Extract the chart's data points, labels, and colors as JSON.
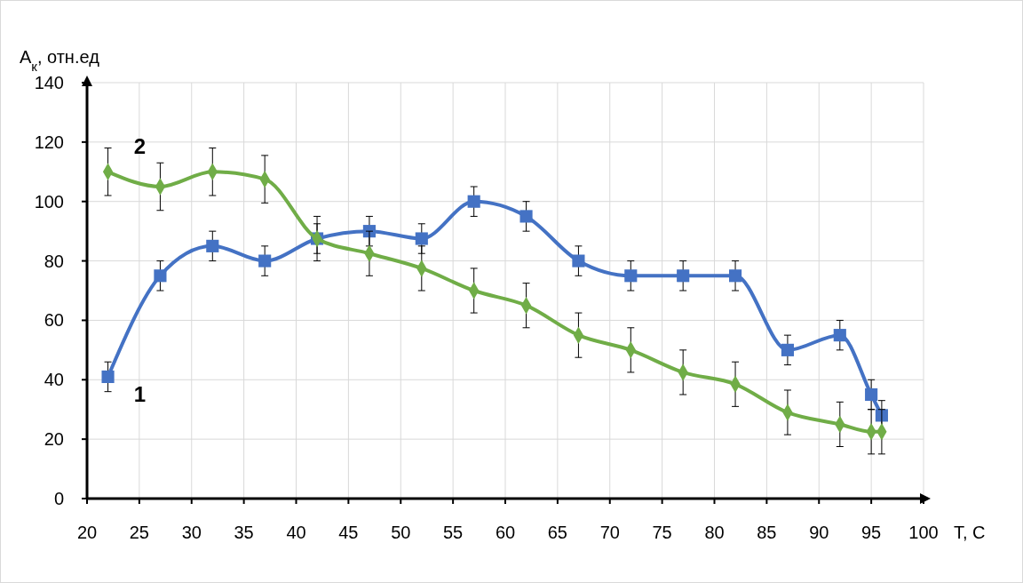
{
  "chart_data": {
    "type": "line",
    "xlabel": "T, C",
    "ylabel": "A$_{к}$, отн.ед",
    "xlim": [
      20,
      100
    ],
    "xticks": [
      20,
      25,
      30,
      35,
      40,
      45,
      50,
      55,
      60,
      65,
      70,
      75,
      80,
      85,
      90,
      95,
      100
    ],
    "ylim": [
      0,
      140
    ],
    "yticks": [
      0,
      20,
      40,
      60,
      80,
      100,
      120,
      140
    ],
    "grid": true,
    "series": [
      {
        "name": "1",
        "color": "#4472c4",
        "marker": "square",
        "x": [
          22,
          27,
          32,
          37,
          42,
          47,
          52,
          57,
          62,
          67,
          72,
          77,
          82,
          87,
          92,
          95,
          96
        ],
        "values": [
          41,
          75,
          85,
          80,
          87.5,
          90,
          87.5,
          100,
          95,
          80,
          75,
          75,
          75,
          50,
          55,
          35,
          28
        ],
        "errors": [
          5,
          5,
          5,
          5,
          5,
          5,
          5,
          5,
          5,
          5,
          5,
          5,
          5,
          5,
          5,
          5,
          5
        ]
      },
      {
        "name": "2",
        "color": "#70ad47",
        "marker": "diamond",
        "x": [
          22,
          27,
          32,
          37,
          42,
          47,
          52,
          57,
          62,
          67,
          72,
          77,
          82,
          87,
          92,
          95,
          96
        ],
        "values": [
          110,
          105,
          110,
          107.5,
          87.5,
          82.5,
          77.5,
          70,
          65,
          55,
          50,
          42.5,
          38.5,
          29,
          25,
          22.5,
          22.5
        ],
        "errors": [
          8,
          8,
          8,
          8,
          7.5,
          7.5,
          7.5,
          7.5,
          7.5,
          7.5,
          7.5,
          7.5,
          7.5,
          7.5,
          7.5,
          7.5,
          7.5
        ]
      }
    ]
  }
}
